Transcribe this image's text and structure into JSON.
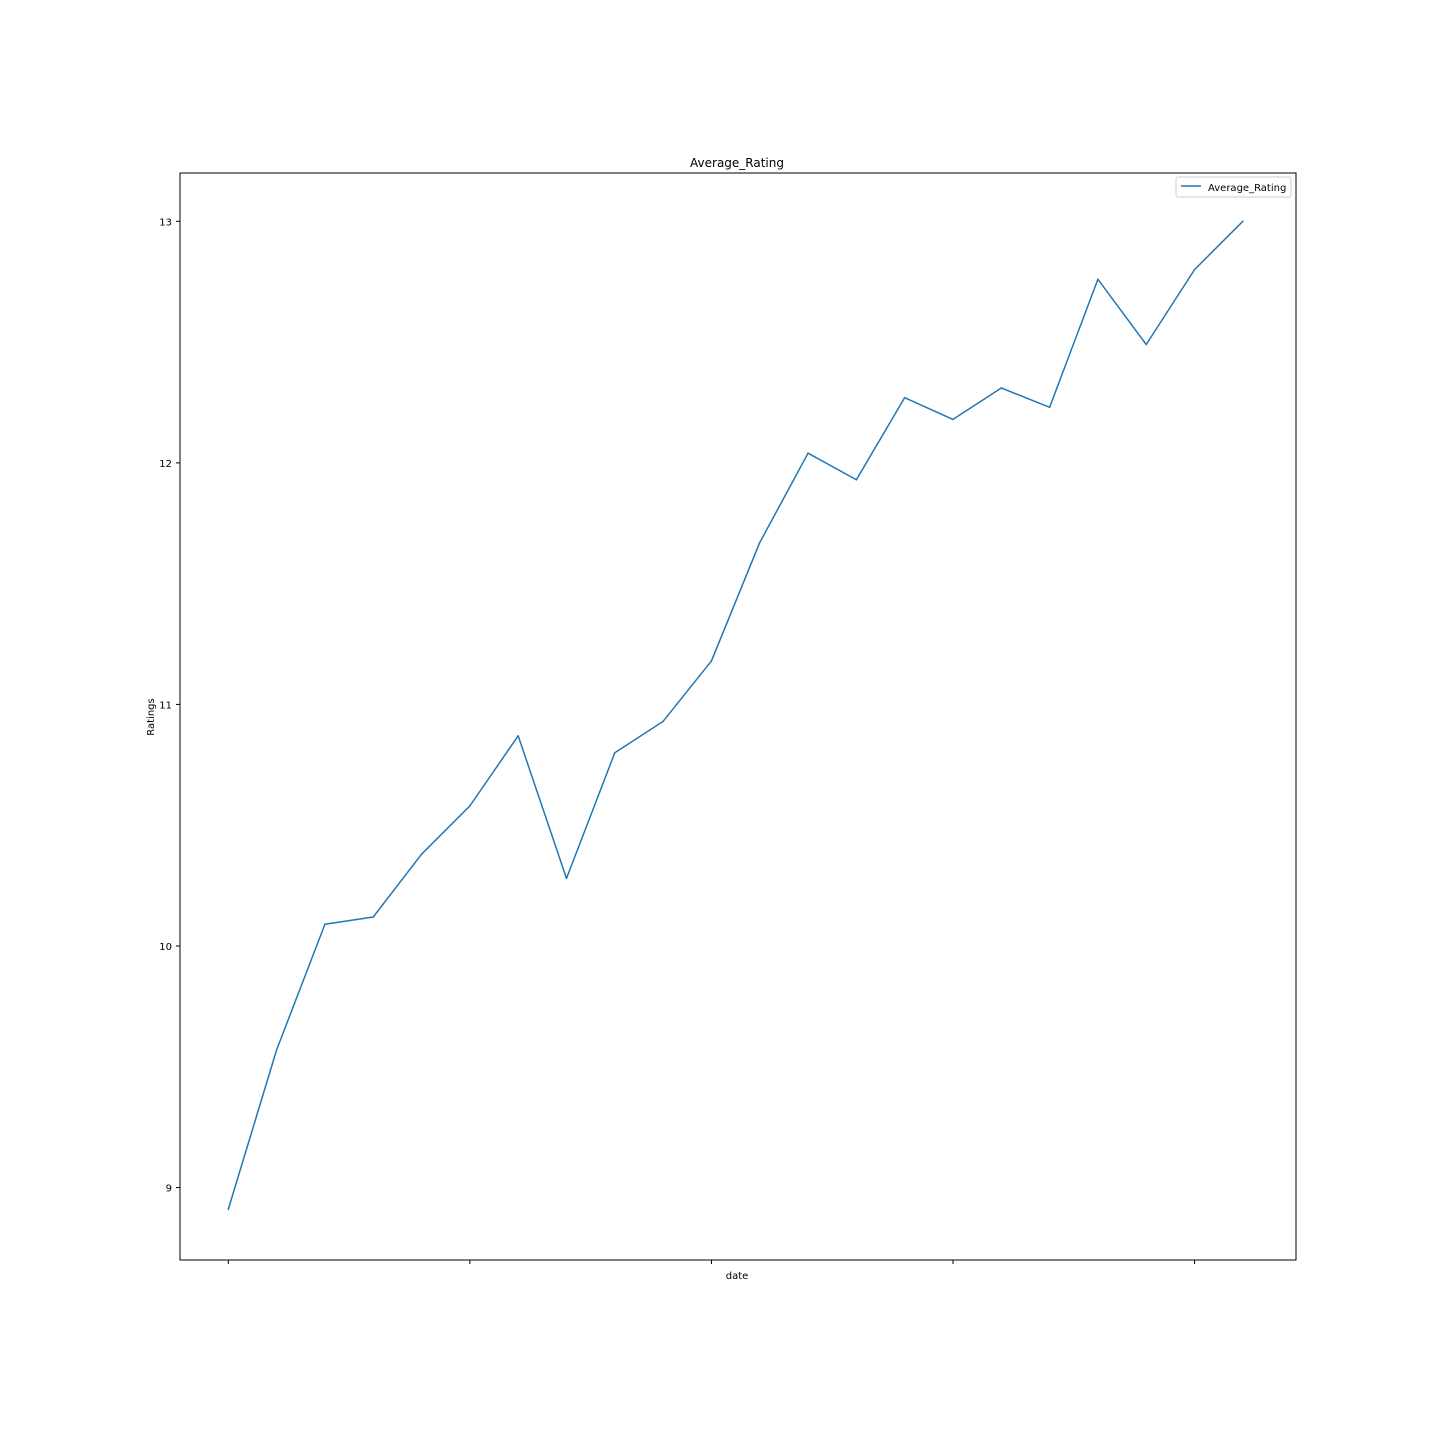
{
  "chart_data": {
    "type": "line",
    "title": "Average_Rating",
    "xlabel": "date",
    "ylabel": "Ratings",
    "x": [
      1,
      2,
      3,
      4,
      5,
      6,
      7,
      8,
      9,
      10,
      11,
      12,
      13,
      14,
      15,
      16,
      17,
      18,
      19,
      20,
      21,
      22
    ],
    "xlim": [
      0.0,
      23.1
    ],
    "x_ticks": [
      1,
      6,
      11,
      16,
      21
    ],
    "x_tick_labels": [
      "",
      "",
      "",
      "",
      ""
    ],
    "ylim": [
      8.7,
      13.2
    ],
    "y_ticks": [
      9,
      10,
      11,
      12,
      13
    ],
    "y_tick_labels": [
      "9",
      "10",
      "11",
      "12",
      "13"
    ],
    "series": [
      {
        "name": "Average_Rating",
        "color": "#1f77b4",
        "values": [
          8.91,
          9.57,
          10.09,
          10.12,
          10.38,
          10.58,
          10.87,
          10.28,
          10.8,
          10.93,
          11.18,
          11.67,
          12.04,
          11.93,
          12.27,
          12.18,
          12.31,
          12.23,
          12.76,
          12.49,
          12.8,
          13.0
        ]
      }
    ],
    "grid": false,
    "legend": "top-right"
  }
}
